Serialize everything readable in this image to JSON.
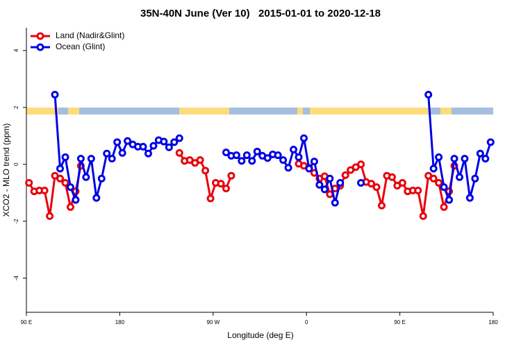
{
  "chart_data": {
    "type": "line",
    "title": "35N-40N June (Ver 10)   2015-01-01 to 2020-12-18",
    "x_label": "Longitude (deg E)",
    "y_label": "XCO2 - MLO trend (ppm)",
    "x": [
      92.5,
      97.5,
      102.5,
      107.5,
      112.5,
      117.5,
      122.5,
      127.5,
      132.5,
      137.5,
      142.5,
      147.5,
      152.5,
      157.5,
      162.5,
      167.5,
      172.5,
      177.5,
      182.5,
      187.5,
      192.5,
      197.5,
      202.5,
      207.5,
      212.5,
      217.5,
      222.5,
      227.5,
      232.5,
      237.5,
      242.5,
      247.5,
      252.5,
      257.5,
      262.5,
      267.5,
      272.5,
      277.5,
      282.5,
      287.5,
      292.5,
      297.5,
      302.5,
      307.5,
      312.5,
      317.5,
      322.5,
      327.5,
      332.5,
      337.5,
      342.5,
      347.5,
      352.5,
      357.5,
      362.5,
      367.5,
      372.5,
      377.5,
      382.5,
      387.5,
      392.5,
      397.5,
      402.5,
      407.5,
      412.5,
      417.5,
      422.5,
      427.5,
      432.5,
      437.5,
      442.5,
      447.5,
      452.5,
      457.5,
      462.5,
      467.5,
      472.5,
      477.5,
      482.5,
      487.5,
      492.5,
      497.5,
      502.5,
      507.5,
      512.5,
      517.5,
      522.5,
      527.5,
      532.5,
      537.5
    ],
    "series": [
      {
        "name": "Land (Nadir&Glint)",
        "color": "#e8000b",
        "values": [
          -0.65,
          -0.95,
          -0.92,
          -0.92,
          -1.82,
          -0.4,
          -0.5,
          -0.65,
          -1.5,
          -0.95,
          -0.05,
          null,
          null,
          null,
          null,
          null,
          null,
          null,
          null,
          null,
          null,
          null,
          null,
          null,
          null,
          null,
          null,
          null,
          null,
          0.4,
          0.12,
          0.15,
          0.05,
          0.15,
          -0.22,
          -1.2,
          -0.65,
          -0.68,
          -0.85,
          -0.4,
          null,
          null,
          null,
          null,
          null,
          null,
          null,
          null,
          null,
          null,
          null,
          null,
          0.02,
          -0.05,
          -0.12,
          -0.3,
          -0.5,
          -0.42,
          -1.05,
          -0.85,
          -0.75,
          -0.38,
          -0.2,
          -0.1,
          0.0,
          -0.62,
          -0.68,
          -0.8,
          -1.45,
          -0.4,
          -0.45,
          -0.75,
          -0.65,
          -0.95,
          -0.92,
          -0.92,
          -1.82,
          -0.4,
          -0.5,
          -0.65,
          -1.5,
          -0.95,
          -0.05,
          null,
          null,
          null,
          null,
          null,
          null,
          null
        ]
      },
      {
        "name": "Ocean (Glint)",
        "color": "#0000e6",
        "values": [
          null,
          null,
          null,
          null,
          null,
          2.45,
          -0.15,
          0.25,
          -0.8,
          -1.25,
          0.2,
          -0.45,
          0.2,
          -1.18,
          -0.5,
          0.38,
          0.2,
          0.78,
          0.4,
          0.82,
          0.7,
          0.62,
          0.62,
          0.38,
          0.65,
          0.85,
          0.8,
          0.6,
          0.78,
          0.92,
          null,
          null,
          null,
          null,
          null,
          null,
          null,
          null,
          0.42,
          0.3,
          0.32,
          0.12,
          0.32,
          0.12,
          0.45,
          0.3,
          0.22,
          0.35,
          0.32,
          0.15,
          -0.12,
          0.52,
          0.25,
          0.92,
          -0.15,
          0.1,
          -0.72,
          -0.88,
          -0.5,
          -1.35,
          -0.65,
          null,
          null,
          null,
          -0.65,
          null,
          null,
          null,
          null,
          null,
          null,
          null,
          null,
          null,
          null,
          null,
          null,
          2.45,
          -0.15,
          0.25,
          -0.8,
          -1.25,
          0.2,
          -0.45,
          0.2,
          -1.18,
          -0.5,
          0.38,
          0.2,
          0.78
        ]
      }
    ],
    "xlim": [
      90,
      540
    ],
    "xticks": [
      {
        "value": 90,
        "label": "90 E"
      },
      180,
      {
        "value": 270,
        "label": "90 W"
      },
      {
        "value": 360,
        "label": "0"
      },
      {
        "value": 450,
        "label": "90 E"
      },
      {
        "value": 540,
        "label": "180"
      }
    ],
    "ylim": [
      -5.2,
      4.8
    ],
    "yticks": [
      -4,
      -2,
      0,
      2,
      4
    ],
    "legend": "top-left"
  }
}
